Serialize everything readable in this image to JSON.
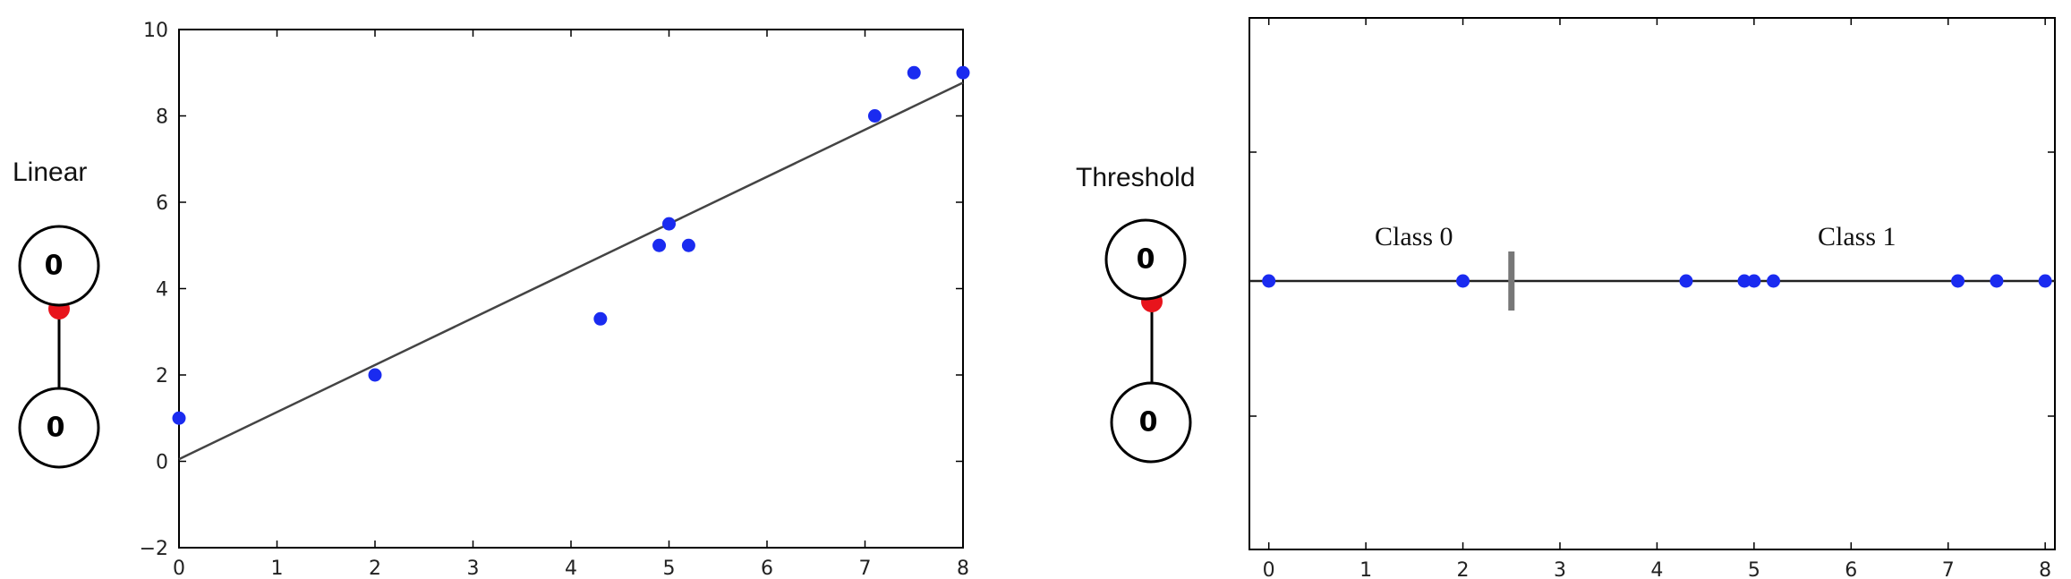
{
  "left": {
    "caption": "Linear",
    "neurons": {
      "top_value": "0",
      "bottom_value": "0"
    }
  },
  "right": {
    "caption": "Threshold",
    "neurons": {
      "top_value": "0",
      "bottom_value": "0"
    }
  },
  "colors": {
    "points": "#1a2bf0",
    "line": "#444444",
    "connector_dot": "#e8141c"
  },
  "chart_data": [
    {
      "type": "scatter",
      "title": "",
      "xlabel": "",
      "ylabel": "",
      "xlim": [
        0,
        8
      ],
      "ylim": [
        -2,
        10
      ],
      "xticks": [
        "0",
        "1",
        "2",
        "3",
        "4",
        "5",
        "6",
        "7",
        "8"
      ],
      "yticks": [
        "−2",
        "0",
        "2",
        "4",
        "6",
        "8",
        "10"
      ],
      "points": [
        {
          "x": 0,
          "y": 1
        },
        {
          "x": 2,
          "y": 2
        },
        {
          "x": 4.3,
          "y": 3.3
        },
        {
          "x": 4.9,
          "y": 5
        },
        {
          "x": 5,
          "y": 5.5
        },
        {
          "x": 5.2,
          "y": 5
        },
        {
          "x": 7.1,
          "y": 8
        },
        {
          "x": 7.5,
          "y": 9
        },
        {
          "x": 8,
          "y": 9
        }
      ],
      "fit_line": {
        "intercept": 0.05,
        "slope": 1.09
      },
      "grid": false
    },
    {
      "type": "scatter",
      "title": "",
      "xlim": [
        -0.2,
        8.1
      ],
      "xticks": [
        "0",
        "1",
        "2",
        "3",
        "4",
        "5",
        "6",
        "7",
        "8"
      ],
      "points_x": [
        0,
        2,
        4.3,
        4.9,
        5,
        5.2,
        7.1,
        7.5,
        8
      ],
      "threshold": 2.5,
      "annotations": [
        "Class 0",
        "Class 1"
      ],
      "grid": false
    }
  ]
}
